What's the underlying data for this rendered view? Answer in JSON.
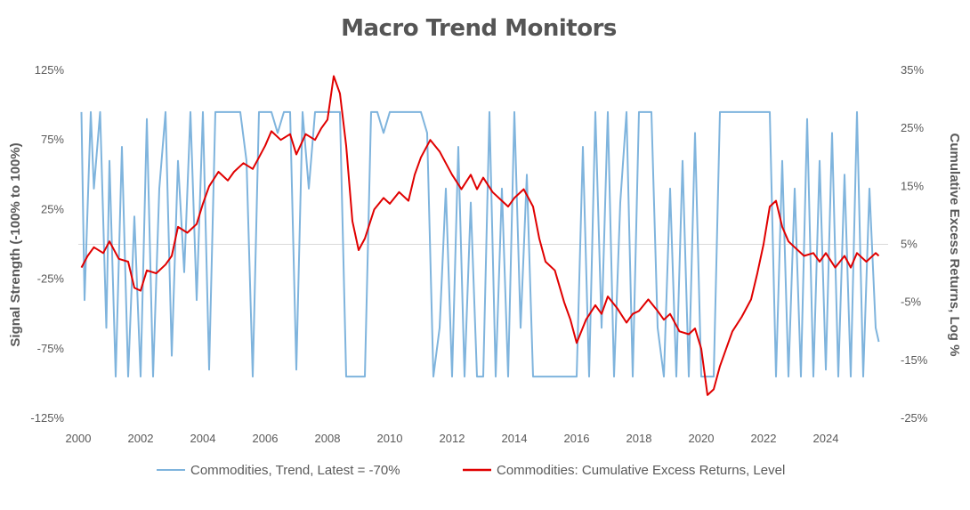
{
  "chart_data": {
    "type": "line",
    "title": "Macro Trend Monitors",
    "xlabel": "",
    "ylabel": "Signal Strength (-100% to 100%)",
    "ylabel_right": "Cumulative Excess Returns, Log %",
    "x_ticks": [
      "2000",
      "2002",
      "2004",
      "2006",
      "2008",
      "2010",
      "2012",
      "2014",
      "2016",
      "2018",
      "2020",
      "2022",
      "2024"
    ],
    "y_ticks_left": [
      "125%",
      "75%",
      "25%",
      "-25%",
      "-75%",
      "-125%"
    ],
    "y_ticks_right": [
      "35%",
      "25%",
      "15%",
      "5%",
      "-5%",
      "-15%",
      "-25%"
    ],
    "xlim": [
      2000,
      2026
    ],
    "ylim_left": [
      -125,
      125
    ],
    "ylim_right": [
      -25,
      35
    ],
    "grid": false,
    "legend_position": "bottom",
    "colors": {
      "trend": "#7fb4dd",
      "returns": "#e00000",
      "zero_line": "#d9d9d9"
    },
    "series": [
      {
        "name": "Commodities, Trend, Latest = -70%",
        "axis": "left",
        "x": [
          2000.1,
          2000.2,
          2000.4,
          2000.5,
          2000.7,
          2000.9,
          2001.0,
          2001.2,
          2001.4,
          2001.6,
          2001.8,
          2002.0,
          2002.2,
          2002.4,
          2002.6,
          2002.8,
          2003.0,
          2003.2,
          2003.4,
          2003.6,
          2003.8,
          2004.0,
          2004.2,
          2004.4,
          2004.6,
          2004.8,
          2005.0,
          2005.2,
          2005.4,
          2005.6,
          2005.8,
          2006.0,
          2006.2,
          2006.4,
          2006.6,
          2006.8,
          2007.0,
          2007.2,
          2007.4,
          2007.6,
          2007.8,
          2008.0,
          2008.2,
          2008.4,
          2008.6,
          2008.8,
          2009.0,
          2009.2,
          2009.4,
          2009.6,
          2009.8,
          2010.0,
          2010.2,
          2010.4,
          2010.6,
          2010.8,
          2011.0,
          2011.2,
          2011.4,
          2011.6,
          2011.8,
          2012.0,
          2012.2,
          2012.4,
          2012.6,
          2012.8,
          2013.0,
          2013.2,
          2013.4,
          2013.6,
          2013.8,
          2014.0,
          2014.2,
          2014.4,
          2014.6,
          2014.8,
          2015.0,
          2015.2,
          2015.4,
          2015.6,
          2015.8,
          2016.0,
          2016.2,
          2016.4,
          2016.6,
          2016.8,
          2017.0,
          2017.2,
          2017.4,
          2017.6,
          2017.8,
          2018.0,
          2018.2,
          2018.4,
          2018.6,
          2018.8,
          2019.0,
          2019.2,
          2019.4,
          2019.6,
          2019.8,
          2020.0,
          2020.2,
          2020.4,
          2020.6,
          2020.8,
          2021.0,
          2021.2,
          2021.4,
          2021.6,
          2021.8,
          2022.0,
          2022.2,
          2022.4,
          2022.6,
          2022.8,
          2023.0,
          2023.2,
          2023.4,
          2023.6,
          2023.8,
          2024.0,
          2024.2,
          2024.4,
          2024.6,
          2024.8,
          2025.0,
          2025.2,
          2025.4,
          2025.6,
          2025.7
        ],
        "values": [
          95,
          -40,
          95,
          40,
          95,
          -60,
          60,
          -95,
          70,
          -95,
          20,
          -95,
          90,
          -95,
          40,
          95,
          -80,
          60,
          -20,
          95,
          -40,
          95,
          -90,
          95,
          95,
          95,
          95,
          95,
          60,
          -95,
          95,
          95,
          95,
          80,
          95,
          95,
          -90,
          95,
          40,
          95,
          95,
          95,
          95,
          95,
          -95,
          -95,
          -95,
          -95,
          95,
          95,
          80,
          95,
          95,
          95,
          95,
          95,
          95,
          80,
          -95,
          -60,
          40,
          -95,
          70,
          -95,
          30,
          -95,
          -95,
          95,
          -95,
          40,
          -95,
          95,
          -60,
          50,
          -95,
          -95,
          -95,
          -95,
          -95,
          -95,
          -95,
          -95,
          70,
          -95,
          95,
          -60,
          95,
          -95,
          30,
          95,
          -95,
          95,
          95,
          95,
          -60,
          -95,
          40,
          -95,
          60,
          -95,
          80,
          -95,
          -95,
          -95,
          95,
          95,
          95,
          95,
          95,
          95,
          95,
          95,
          95,
          -95,
          60,
          -95,
          40,
          -95,
          90,
          -95,
          60,
          -90,
          80,
          -95,
          50,
          -95,
          95,
          -95,
          40,
          -60,
          -70
        ]
      },
      {
        "name": "Commodities: Cumulative Excess Returns, Level",
        "axis": "right",
        "x": [
          2000.1,
          2000.3,
          2000.5,
          2000.8,
          2001.0,
          2001.3,
          2001.6,
          2001.8,
          2002.0,
          2002.2,
          2002.5,
          2002.8,
          2003.0,
          2003.2,
          2003.5,
          2003.8,
          2004.0,
          2004.2,
          2004.5,
          2004.8,
          2005.0,
          2005.3,
          2005.6,
          2005.8,
          2006.0,
          2006.2,
          2006.5,
          2006.8,
          2007.0,
          2007.3,
          2007.6,
          2007.8,
          2008.0,
          2008.2,
          2008.4,
          2008.6,
          2008.8,
          2009.0,
          2009.2,
          2009.5,
          2009.8,
          2010.0,
          2010.3,
          2010.6,
          2010.8,
          2011.0,
          2011.3,
          2011.6,
          2011.8,
          2012.0,
          2012.3,
          2012.6,
          2012.8,
          2013.0,
          2013.3,
          2013.6,
          2013.8,
          2014.0,
          2014.3,
          2014.6,
          2014.8,
          2015.0,
          2015.3,
          2015.6,
          2015.8,
          2016.0,
          2016.3,
          2016.6,
          2016.8,
          2017.0,
          2017.3,
          2017.6,
          2017.8,
          2018.0,
          2018.3,
          2018.6,
          2018.8,
          2019.0,
          2019.3,
          2019.6,
          2019.8,
          2020.0,
          2020.2,
          2020.4,
          2020.6,
          2020.8,
          2021.0,
          2021.3,
          2021.6,
          2021.8,
          2022.0,
          2022.2,
          2022.4,
          2022.6,
          2022.8,
          2023.0,
          2023.3,
          2023.6,
          2023.8,
          2024.0,
          2024.3,
          2024.6,
          2024.8,
          2025.0,
          2025.3,
          2025.6,
          2025.7
        ],
        "values": [
          1.0,
          3.0,
          4.5,
          3.5,
          5.5,
          2.5,
          2.0,
          -2.5,
          -3.0,
          0.5,
          0.0,
          1.5,
          3.0,
          8.0,
          7.0,
          8.5,
          12.0,
          15.0,
          17.5,
          16.0,
          17.5,
          19.0,
          18.0,
          20.0,
          22.0,
          24.5,
          23.0,
          24.0,
          20.5,
          24.0,
          23.0,
          25.0,
          26.5,
          34.0,
          31.0,
          22.0,
          9.0,
          4.0,
          6.0,
          11.0,
          13.0,
          12.0,
          14.0,
          12.5,
          17.0,
          20.0,
          23.0,
          21.0,
          19.0,
          17.0,
          14.5,
          17.0,
          14.5,
          16.5,
          14.0,
          12.5,
          11.5,
          13.0,
          14.5,
          11.5,
          6.0,
          2.0,
          0.5,
          -5.0,
          -8.0,
          -12.0,
          -8.0,
          -5.5,
          -7.0,
          -4.0,
          -6.0,
          -8.5,
          -7.0,
          -6.5,
          -4.5,
          -6.5,
          -8.0,
          -7.0,
          -10.0,
          -10.5,
          -9.5,
          -13.0,
          -21.0,
          -20.0,
          -16.0,
          -13.0,
          -10.0,
          -7.5,
          -4.5,
          0.0,
          5.0,
          11.5,
          12.5,
          8.0,
          5.5,
          4.5,
          3.0,
          3.5,
          2.0,
          3.5,
          1.0,
          3.0,
          1.0,
          3.5,
          2.0,
          3.5,
          3.0
        ]
      }
    ]
  }
}
